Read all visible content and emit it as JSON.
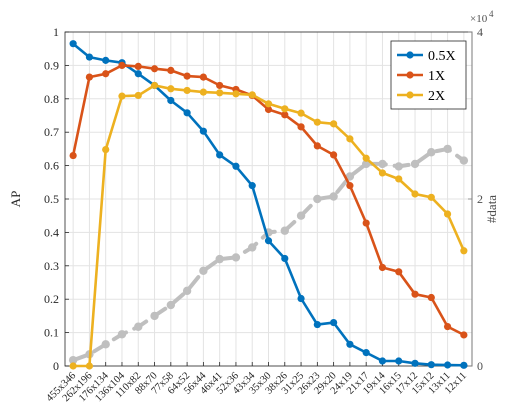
{
  "chart_data": {
    "type": "line",
    "categories": [
      "455x346",
      "262x196",
      "176x134",
      "136x104",
      "110x82",
      "88x70",
      "77x58",
      "64x52",
      "56x44",
      "46x41",
      "52x36",
      "43x34",
      "35x30",
      "38x26",
      "31x25",
      "26x23",
      "29x20",
      "24x19",
      "21x17",
      "19x14",
      "16x15",
      "17x12",
      "15x12",
      "13x11",
      "12x11"
    ],
    "ylabel": "AP",
    "ylim": [
      0,
      1
    ],
    "yticks": [
      0,
      0.1,
      0.2,
      0.3,
      0.4,
      0.5,
      0.6,
      0.7,
      0.8,
      0.9,
      1
    ],
    "ytick_labels": [
      "0",
      "0.1",
      "0.2",
      "0.3",
      "0.4",
      "0.5",
      "0.6",
      "0.7",
      "0.8",
      "0.9",
      "1"
    ],
    "y2label": "#data",
    "y2lim": [
      0,
      40000
    ],
    "y2ticks": [
      0,
      20000,
      40000
    ],
    "y2tick_labels": [
      "0",
      "2",
      "4"
    ],
    "y2_exponent_label": "×10",
    "y2_exponent_power": "4",
    "grid": true,
    "legend_position": "top-right",
    "series": [
      {
        "name": "0.5X",
        "axis": "left",
        "color": "#0072BD",
        "values": [
          0.965,
          0.925,
          0.915,
          0.908,
          0.875,
          0.84,
          0.795,
          0.758,
          0.703,
          0.632,
          0.598,
          0.54,
          0.375,
          0.322,
          0.202,
          0.124,
          0.13,
          0.065,
          0.04,
          0.015,
          0.015,
          0.008,
          0.004,
          0.003,
          0.002
        ]
      },
      {
        "name": "1X",
        "axis": "left",
        "color": "#D95319",
        "values": [
          0.63,
          0.865,
          0.875,
          0.9,
          0.897,
          0.89,
          0.885,
          0.868,
          0.865,
          0.84,
          0.828,
          0.81,
          0.768,
          0.752,
          0.716,
          0.659,
          0.632,
          0.54,
          0.428,
          0.295,
          0.282,
          0.215,
          0.205,
          0.118,
          0.093
        ]
      },
      {
        "name": "2X",
        "axis": "left",
        "color": "#EDB120",
        "values": [
          0.0,
          0.0,
          0.648,
          0.808,
          0.81,
          0.84,
          0.83,
          0.825,
          0.82,
          0.818,
          0.815,
          0.812,
          0.785,
          0.77,
          0.757,
          0.73,
          0.725,
          0.68,
          0.622,
          0.578,
          0.56,
          0.515,
          0.505,
          0.455,
          0.345
        ]
      },
      {
        "axis": "right",
        "color": "#BFBFBF",
        "dashed": true,
        "values": [
          700,
          1400,
          2600,
          3800,
          4700,
          6000,
          7300,
          9000,
          11400,
          12800,
          13000,
          14200,
          16000,
          16200,
          18000,
          20000,
          20300,
          22700,
          24200,
          24200,
          23900,
          24200,
          25600,
          26000,
          24600
        ]
      }
    ]
  }
}
